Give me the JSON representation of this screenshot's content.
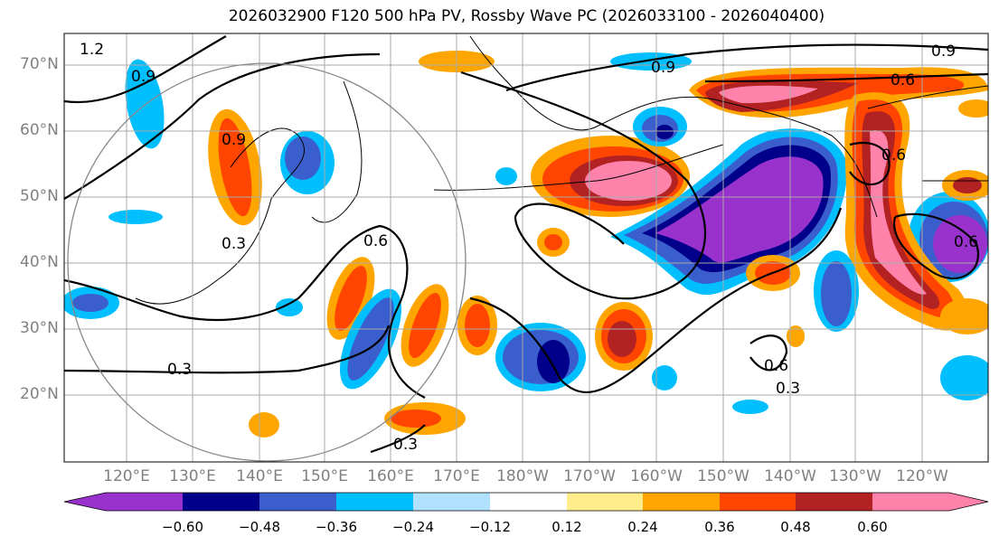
{
  "title": "2026032900 F120 500 hPa PV, Rossby Wave PC (2026033100 - 2026040400)",
  "lat_labels": [
    "70°N",
    "60°N",
    "50°N",
    "40°N",
    "30°N",
    "20°N"
  ],
  "lon_labels": [
    "120°E",
    "130°E",
    "140°E",
    "150°E",
    "160°E",
    "170°E",
    "180°W",
    "170°W",
    "160°W",
    "150°W",
    "140°W",
    "130°W",
    "120°W"
  ],
  "colorbar": {
    "ticks": [
      "−0.60",
      "−0.48",
      "−0.36",
      "−0.24",
      "−0.12",
      "0.12",
      "0.24",
      "0.36",
      "0.48",
      "0.60"
    ],
    "colors": [
      "#9932CC",
      "#00008B",
      "#3A5FCD",
      "#00BFFF",
      "#B0E2FF",
      "#FFFFFF",
      "#FFEC8B",
      "#FFA500",
      "#FF4500",
      "#B22222",
      "#FF82AB"
    ]
  },
  "contour_labels": [
    "1.2",
    "0.9",
    "0.9",
    "0.9",
    "0.6",
    "0.6",
    "0.6",
    "0.6",
    "0.3",
    "0.3",
    "0.3",
    "0.3",
    "0.6",
    "0.9"
  ]
}
